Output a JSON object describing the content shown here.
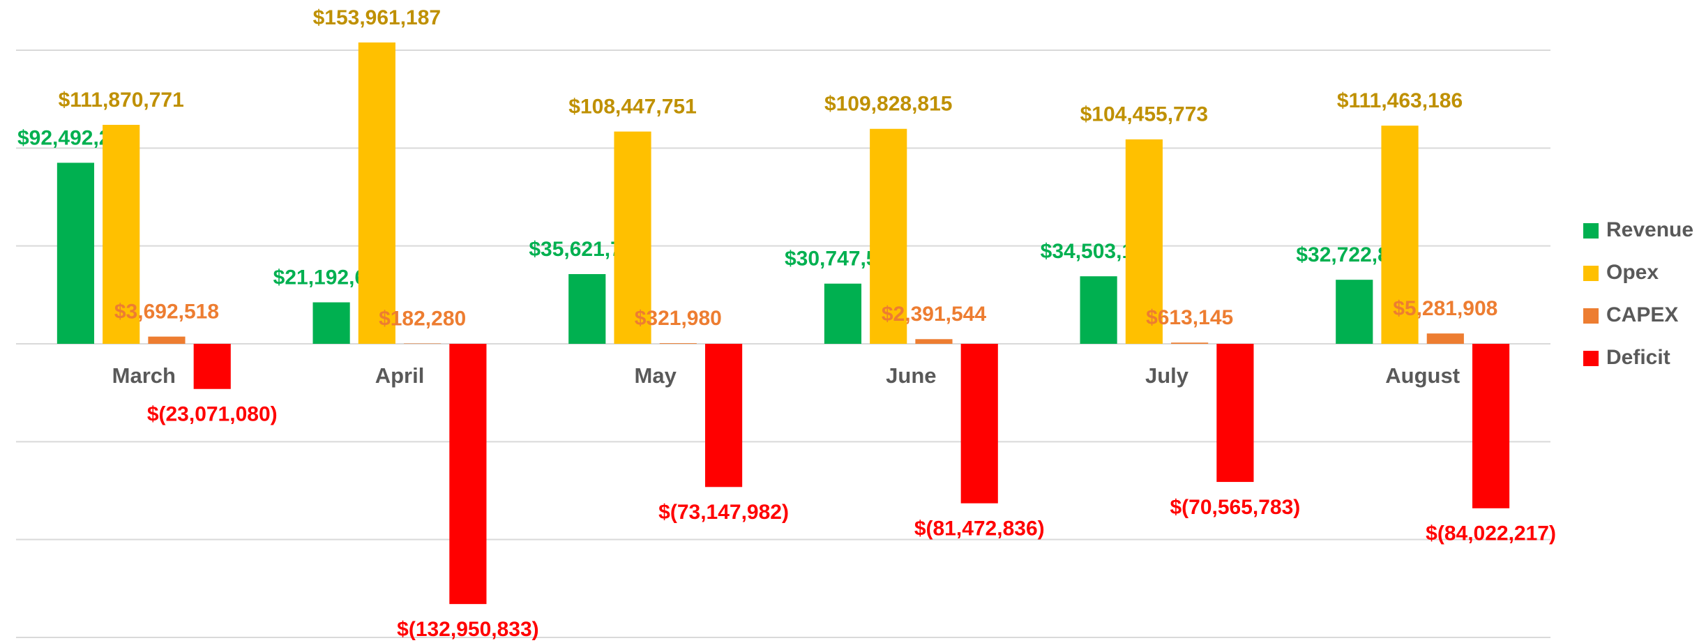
{
  "chart_data": {
    "type": "bar",
    "categories": [
      "March",
      "April",
      "May",
      "June",
      "July",
      "August"
    ],
    "series": [
      {
        "name": "Revenue",
        "color": "#00b050",
        "label_color": "#00b050",
        "values": [
          92492209,
          21192634,
          35621749,
          30747523,
          34503135,
          32722877
        ],
        "value_labels": [
          "$92,492,209",
          "$21,192,634",
          "$35,621,749",
          "$30,747,523",
          "$34,503,135",
          "$32,722,877"
        ]
      },
      {
        "name": "Opex",
        "color": "#ffc000",
        "label_color": "#bf9000",
        "values": [
          111870771,
          153961187,
          108447751,
          109828815,
          104455773,
          111463186
        ],
        "value_labels": [
          "$111,870,771",
          "$153,961,187",
          "$108,447,751",
          "$109,828,815",
          "$104,455,773",
          "$111,463,186"
        ]
      },
      {
        "name": "CAPEX",
        "color": "#ed7d31",
        "label_color": "#ed7d31",
        "values": [
          3692518,
          182280,
          321980,
          2391544,
          613145,
          5281908
        ],
        "value_labels": [
          "$3,692,518",
          "$182,280",
          "$321,980",
          "$2,391,544",
          "$613,145",
          "$5,281,908"
        ]
      },
      {
        "name": "Deficit",
        "color": "#ff0000",
        "label_color": "#ff0000",
        "values": [
          -23071080,
          -132950833,
          -73147982,
          -81472836,
          -70565783,
          -84022217
        ],
        "value_labels": [
          "$(23,071,080)",
          "$(132,950,833)",
          "$(73,147,982)",
          "$(81,472,836)",
          "$(70,565,783)",
          "$(84,022,217)"
        ]
      }
    ],
    "ylim": [
      -150000000,
      150000000
    ],
    "yticks": [
      -150000000,
      -100000000,
      -50000000,
      0,
      50000000,
      100000000,
      150000000
    ],
    "grid": true,
    "legend": "right"
  }
}
